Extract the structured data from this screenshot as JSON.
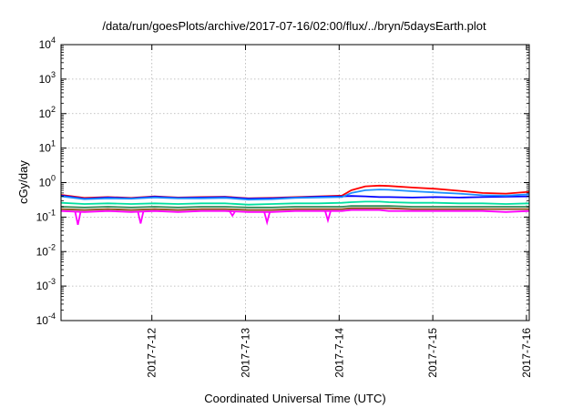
{
  "chart_data": {
    "type": "line",
    "title": "/data/run/goesPlots/archive/2017-07-16/02:00/flux/../bryn/5daysEarth.plot",
    "xlabel": "Coordinated Universal Time (UTC)",
    "ylabel": "cGy/day",
    "yscale": "log",
    "ylim": [
      0.0001,
      10000
    ],
    "xlim": [
      0.0,
      5.0
    ],
    "grid": true,
    "legend": "none",
    "y_ticks": [
      {
        "base": "10",
        "exp": "4"
      },
      {
        "base": "10",
        "exp": "3"
      },
      {
        "base": "10",
        "exp": "2"
      },
      {
        "base": "10",
        "exp": "1"
      },
      {
        "base": "10",
        "exp": "0"
      },
      {
        "base": "10",
        "exp": "-1"
      },
      {
        "base": "10",
        "exp": "-2"
      },
      {
        "base": "10",
        "exp": "-3"
      },
      {
        "base": "10",
        "exp": "-4"
      }
    ],
    "y_tick_values": [
      10000,
      1000,
      100,
      10,
      1,
      0.1,
      0.01,
      0.001,
      0.0001
    ],
    "x_ticks": [
      "2017-7-12",
      "2017-7-13",
      "2017-7-14",
      "2017-7-15",
      "2017-7-16"
    ],
    "x_tick_values": [
      0.97,
      1.97,
      2.97,
      3.97,
      4.97
    ],
    "x_days": [
      0.0,
      0.25,
      0.5,
      0.75,
      1.0,
      1.25,
      1.5,
      1.75,
      2.0,
      2.25,
      2.5,
      2.75,
      3.0,
      3.1,
      3.25,
      3.4,
      3.5,
      3.75,
      4.0,
      4.25,
      4.5,
      4.75,
      5.0
    ],
    "series": [
      {
        "color": "#ff0000",
        "values": [
          0.44,
          0.36,
          0.38,
          0.36,
          0.4,
          0.37,
          0.38,
          0.39,
          0.35,
          0.36,
          0.38,
          0.4,
          0.42,
          0.6,
          0.78,
          0.82,
          0.8,
          0.72,
          0.66,
          0.58,
          0.5,
          0.48,
          0.54
        ]
      },
      {
        "color": "#0000ff",
        "values": [
          0.42,
          0.34,
          0.37,
          0.35,
          0.39,
          0.36,
          0.37,
          0.38,
          0.34,
          0.35,
          0.37,
          0.39,
          0.4,
          0.41,
          0.4,
          0.38,
          0.38,
          0.37,
          0.38,
          0.37,
          0.38,
          0.39,
          0.4
        ]
      },
      {
        "color": "#1e90ff",
        "values": [
          0.4,
          0.33,
          0.35,
          0.34,
          0.37,
          0.35,
          0.35,
          0.36,
          0.32,
          0.33,
          0.36,
          0.37,
          0.38,
          0.5,
          0.6,
          0.63,
          0.62,
          0.56,
          0.52,
          0.48,
          0.43,
          0.42,
          0.46
        ]
      },
      {
        "color": "#00e0a0",
        "values": [
          0.26,
          0.24,
          0.25,
          0.24,
          0.25,
          0.24,
          0.25,
          0.25,
          0.23,
          0.24,
          0.25,
          0.25,
          0.26,
          0.27,
          0.28,
          0.28,
          0.27,
          0.26,
          0.26,
          0.25,
          0.25,
          0.24,
          0.25
        ]
      },
      {
        "color": "#2e8b57",
        "values": [
          0.2,
          0.19,
          0.2,
          0.19,
          0.2,
          0.19,
          0.2,
          0.2,
          0.19,
          0.19,
          0.2,
          0.2,
          0.2,
          0.21,
          0.21,
          0.21,
          0.21,
          0.2,
          0.2,
          0.2,
          0.2,
          0.2,
          0.2
        ]
      },
      {
        "color": "#8b4513",
        "values": [
          0.17,
          0.16,
          0.17,
          0.16,
          0.17,
          0.16,
          0.17,
          0.17,
          0.16,
          0.16,
          0.17,
          0.17,
          0.17,
          0.18,
          0.18,
          0.18,
          0.18,
          0.17,
          0.17,
          0.17,
          0.17,
          0.17,
          0.17
        ]
      },
      {
        "color": "#ff00ff",
        "values": [
          0.15,
          0.14,
          0.15,
          0.14,
          0.15,
          0.14,
          0.15,
          0.15,
          0.14,
          0.14,
          0.15,
          0.15,
          0.15,
          0.16,
          0.16,
          0.16,
          0.15,
          0.15,
          0.15,
          0.15,
          0.15,
          0.14,
          0.15
        ]
      }
    ],
    "dips": [
      {
        "x": 0.18,
        "y": 0.06
      },
      {
        "x": 0.85,
        "y": 0.065
      },
      {
        "x": 1.83,
        "y": 0.11
      },
      {
        "x": 2.2,
        "y": 0.07
      },
      {
        "x": 2.85,
        "y": 0.08
      }
    ]
  }
}
